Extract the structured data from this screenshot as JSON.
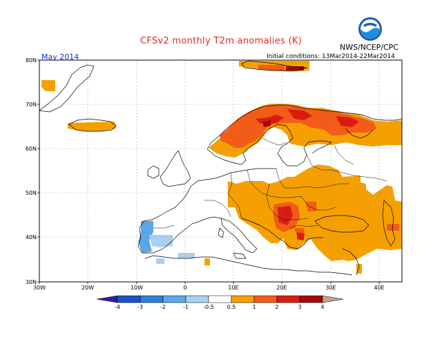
{
  "header": {
    "title": "CFSv2 monthly T2m anomalies (K)",
    "organization": "NWS/NCEP/CPC",
    "logo_text": "NOAA",
    "month": "May 2014",
    "initial_conditions": "Initial conditions: 13Mar2014-22Mar2014"
  },
  "map": {
    "lat_labels": [
      "80N",
      "70N",
      "60N",
      "50N",
      "40N",
      "30N"
    ],
    "lon_labels": [
      "30W",
      "20W",
      "10W",
      "0",
      "10E",
      "20E",
      "30E",
      "40E"
    ]
  },
  "colorbar": {
    "labels": [
      "-4",
      "-3",
      "-2",
      "-1",
      "-0.5",
      "0.5",
      "1",
      "2",
      "3",
      "4"
    ],
    "colors": [
      "#2b1fa8",
      "#1f50c8",
      "#2e7fd8",
      "#5aa6e8",
      "#a8d0f2",
      "#ffffff",
      "#f5a000",
      "#f25c18",
      "#d91c10",
      "#a40a0a",
      "#c8a090"
    ]
  },
  "colors": {
    "land_line": "#000000",
    "grid": "#8c8c8c",
    "orange": "#f5a000",
    "orange_red": "#f25c18",
    "red": "#d91c10",
    "dark_red": "#a40a0a",
    "light_blue": "#a8d0f2",
    "blue": "#5aa6e8"
  }
}
